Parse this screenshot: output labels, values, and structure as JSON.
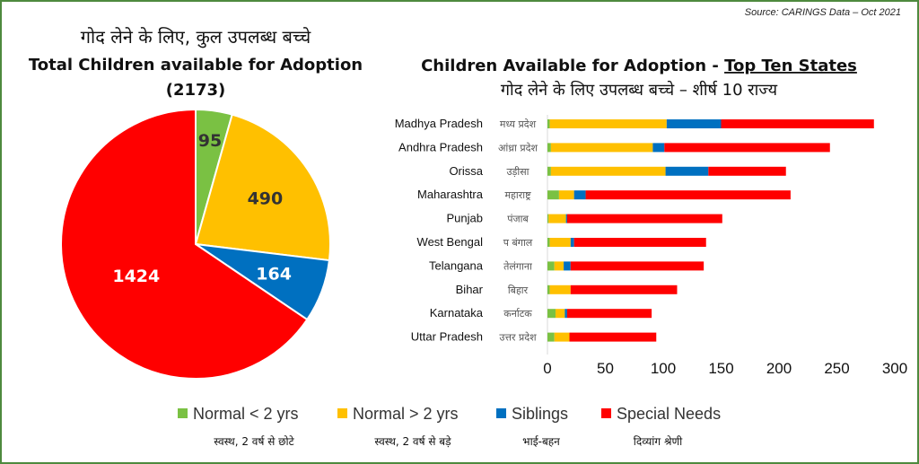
{
  "source": "Source: CARINGS Data – Oct 2021",
  "pie_title": {
    "hindi": "गोद लेने के लिए, कुल उपलब्ध बच्चे",
    "english": "Total Children available for Adoption",
    "total": "(2173)"
  },
  "bar_title": {
    "english_prefix": "Children Available for Adoption - ",
    "english_underlined": "Top Ten States",
    "hindi": "गोद लेने के लिए उपलब्ध बच्चे – शीर्ष 10 राज्य"
  },
  "colors": {
    "normal_lt2": "#7ac143",
    "normal_gt2": "#ffc000",
    "siblings": "#0070c0",
    "special": "#ff0000",
    "frame": "#4e8a3e"
  },
  "legend": [
    {
      "label": "Normal < 2 yrs",
      "hindi": "स्वस्थ, 2 वर्ष से छोटे",
      "color": "#7ac143"
    },
    {
      "label": "Normal > 2 yrs",
      "hindi": "स्वस्थ, 2 वर्ष से बड़े",
      "color": "#ffc000"
    },
    {
      "label": "Siblings",
      "hindi": "भाई-बहन",
      "color": "#0070c0"
    },
    {
      "label": "Special Needs",
      "hindi": "दिव्यांग श्रेणी",
      "color": "#ff0000"
    }
  ],
  "chart_data": [
    {
      "type": "pie",
      "title": "Total Children available for Adoption",
      "categories": [
        "Normal < 2 yrs",
        "Normal > 2 yrs",
        "Siblings",
        "Special Needs"
      ],
      "values": [
        95,
        490,
        164,
        1424
      ],
      "colors": [
        "#7ac143",
        "#ffc000",
        "#0070c0",
        "#ff0000"
      ]
    },
    {
      "type": "bar",
      "orientation": "horizontal",
      "stacked": true,
      "title": "Children Available for Adoption - Top Ten States",
      "categories": [
        "Madhya Pradesh",
        "Andhra Pradesh",
        "Orissa",
        "Maharashtra",
        "Punjab",
        "West Bengal",
        "Telangana",
        "Bihar",
        "Karnataka",
        "Uttar Pradesh"
      ],
      "categories_display": [
        "Madhya Pradesh",
        "Andhra Pradesh",
        "Orissa",
        "Maharashtra",
        "Punjab",
        "West Bengal",
        "Telangana",
        "Bihar",
        "Karnataka",
        "Uttar Pradesh"
      ],
      "categories_hindi": [
        "मध्य प्रदेश",
        "आंध्रा प्रदेश",
        "उड़ीसा",
        "महाराष्ट्र",
        "पंजाब",
        "प बंगाल",
        "तेलंगाना",
        "बिहार",
        "कर्नाटक",
        "उत्तर प्रदेश"
      ],
      "series": [
        {
          "name": "Normal < 2 yrs",
          "values": [
            2,
            3,
            3,
            10,
            1,
            2,
            6,
            2,
            7,
            6
          ],
          "color": "#7ac143"
        },
        {
          "name": "Normal > 2 yrs",
          "values": [
            101,
            88,
            99,
            13,
            15,
            18,
            8,
            18,
            8,
            13
          ],
          "color": "#ffc000"
        },
        {
          "name": "Siblings",
          "values": [
            47,
            10,
            37,
            10,
            1,
            3,
            6,
            0,
            2,
            0
          ],
          "color": "#0070c0"
        },
        {
          "name": "Special Needs",
          "values": [
            132,
            143,
            67,
            177,
            134,
            114,
            115,
            92,
            73,
            75
          ],
          "color": "#ff0000"
        }
      ],
      "xlim": [
        0,
        300
      ],
      "xticks": [
        0,
        50,
        100,
        150,
        200,
        250,
        300
      ]
    }
  ]
}
